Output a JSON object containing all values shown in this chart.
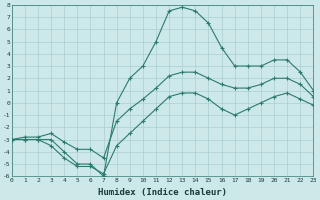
{
  "title": "",
  "xlabel": "Humidex (Indice chaleur)",
  "ylabel": "",
  "x_ticks": [
    0,
    1,
    2,
    3,
    4,
    5,
    6,
    7,
    8,
    9,
    10,
    11,
    12,
    13,
    14,
    15,
    16,
    17,
    18,
    19,
    20,
    21,
    22,
    23
  ],
  "ylim": [
    -6,
    8
  ],
  "xlim": [
    0,
    23
  ],
  "bg_color": "#cce8e8",
  "grid_color": "#aacfcf",
  "line_color": "#2d7a6e",
  "line_max": [
    [
      0,
      -3
    ],
    [
      1,
      -3
    ],
    [
      2,
      -3
    ],
    [
      3,
      -3
    ],
    [
      4,
      -4
    ],
    [
      5,
      -5
    ],
    [
      6,
      -5
    ],
    [
      7,
      -6
    ],
    [
      8,
      0
    ],
    [
      9,
      2
    ],
    [
      10,
      3
    ],
    [
      11,
      5
    ],
    [
      12,
      7.5
    ],
    [
      13,
      7.8
    ],
    [
      14,
      7.5
    ],
    [
      15,
      6.5
    ],
    [
      16,
      4.5
    ],
    [
      17,
      3
    ],
    [
      18,
      3
    ],
    [
      19,
      3
    ],
    [
      20,
      3.5
    ],
    [
      21,
      3.5
    ],
    [
      22,
      2.5
    ],
    [
      23,
      1
    ]
  ],
  "line_mean": [
    [
      0,
      -3
    ],
    [
      1,
      -2.8
    ],
    [
      2,
      -2.8
    ],
    [
      3,
      -2.5
    ],
    [
      4,
      -3.2
    ],
    [
      5,
      -3.8
    ],
    [
      6,
      -3.8
    ],
    [
      7,
      -4.5
    ],
    [
      8,
      -1.5
    ],
    [
      9,
      -0.5
    ],
    [
      10,
      0.3
    ],
    [
      11,
      1.2
    ],
    [
      12,
      2.2
    ],
    [
      13,
      2.5
    ],
    [
      14,
      2.5
    ],
    [
      15,
      2.0
    ],
    [
      16,
      1.5
    ],
    [
      17,
      1.2
    ],
    [
      18,
      1.2
    ],
    [
      19,
      1.5
    ],
    [
      20,
      2.0
    ],
    [
      21,
      2.0
    ],
    [
      22,
      1.5
    ],
    [
      23,
      0.5
    ]
  ],
  "line_min": [
    [
      0,
      -3
    ],
    [
      1,
      -3
    ],
    [
      2,
      -3
    ],
    [
      3,
      -3.5
    ],
    [
      4,
      -4.5
    ],
    [
      5,
      -5.2
    ],
    [
      6,
      -5.2
    ],
    [
      7,
      -5.8
    ],
    [
      8,
      -3.5
    ],
    [
      9,
      -2.5
    ],
    [
      10,
      -1.5
    ],
    [
      11,
      -0.5
    ],
    [
      12,
      0.5
    ],
    [
      13,
      0.8
    ],
    [
      14,
      0.8
    ],
    [
      15,
      0.3
    ],
    [
      16,
      -0.5
    ],
    [
      17,
      -1.0
    ],
    [
      18,
      -0.5
    ],
    [
      19,
      0.0
    ],
    [
      20,
      0.5
    ],
    [
      21,
      0.8
    ],
    [
      22,
      0.3
    ],
    [
      23,
      -0.2
    ]
  ]
}
